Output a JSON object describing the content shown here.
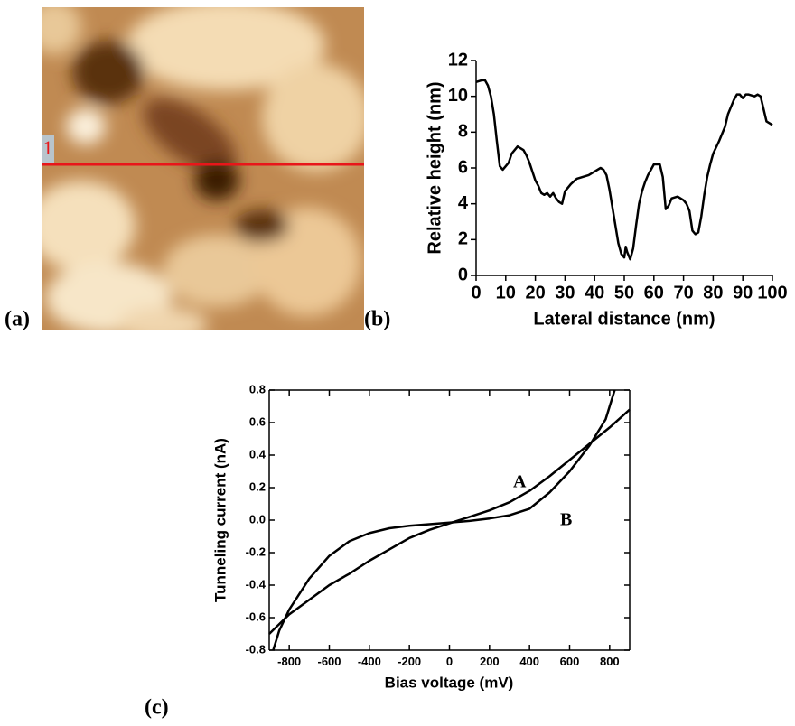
{
  "panels": [
    {
      "label": "(a)",
      "marker": "1"
    },
    {
      "label": "(b)"
    },
    {
      "label": "(c)"
    }
  ],
  "chart_data": [
    {
      "type": "line",
      "xlabel": "Lateral distance (nm)",
      "ylabel": "Relative height (nm)",
      "xlim": [
        0,
        100
      ],
      "ylim": [
        0,
        12
      ],
      "xticks": [
        0,
        10,
        20,
        30,
        40,
        50,
        60,
        70,
        80,
        90,
        100
      ],
      "yticks": [
        0,
        2,
        4,
        6,
        8,
        10,
        12
      ],
      "frame": false,
      "series": [
        {
          "color": "#000000",
          "x": [
            0,
            2,
            3,
            4,
            5,
            6,
            7,
            8,
            9,
            10,
            11,
            12,
            13,
            14,
            16,
            17,
            18,
            19,
            20,
            21,
            22,
            23,
            24,
            25,
            26,
            27,
            28,
            29,
            30,
            32,
            34,
            36,
            38,
            40,
            42,
            43,
            44,
            45,
            46,
            47,
            48,
            49,
            50,
            50.5,
            51,
            52,
            53,
            54,
            55,
            56,
            57,
            58,
            59,
            60,
            62,
            63,
            64,
            65,
            66,
            68,
            70,
            71,
            72,
            73,
            74,
            75,
            76,
            77,
            78,
            79,
            80,
            82,
            84,
            85,
            86,
            87,
            88,
            89,
            90,
            91,
            92,
            94,
            95,
            96,
            97,
            98,
            99,
            100
          ],
          "values": [
            10.8,
            10.9,
            10.9,
            10.6,
            10.0,
            9.0,
            7.5,
            6.1,
            5.9,
            6.1,
            6.3,
            6.8,
            7.0,
            7.2,
            7.0,
            6.7,
            6.3,
            5.8,
            5.3,
            5.0,
            4.6,
            4.5,
            4.6,
            4.4,
            4.6,
            4.3,
            4.1,
            4.0,
            4.7,
            5.1,
            5.4,
            5.5,
            5.6,
            5.8,
            6.0,
            5.9,
            5.6,
            4.8,
            3.8,
            2.8,
            1.8,
            1.2,
            1.0,
            1.6,
            1.3,
            0.9,
            1.5,
            2.8,
            4.0,
            4.7,
            5.2,
            5.6,
            5.9,
            6.2,
            6.2,
            5.5,
            3.7,
            3.9,
            4.3,
            4.4,
            4.2,
            4.0,
            3.6,
            2.5,
            2.3,
            2.4,
            3.3,
            4.5,
            5.5,
            6.2,
            6.8,
            7.5,
            8.3,
            9.0,
            9.4,
            9.8,
            10.1,
            10.1,
            9.9,
            10.1,
            10.1,
            10.0,
            10.1,
            10.0,
            9.3,
            8.6,
            8.5,
            8.4
          ]
        }
      ]
    },
    {
      "type": "line",
      "xlabel": "Bias voltage (mV)",
      "ylabel": "Tunneling current (nA)",
      "xlim": [
        -900,
        900
      ],
      "ylim": [
        -0.8,
        0.8
      ],
      "xticks": [
        -800,
        -600,
        -400,
        -200,
        0,
        200,
        400,
        600,
        800
      ],
      "yticks": [
        -0.8,
        -0.6,
        -0.4,
        -0.2,
        {
          "value": 0,
          "label": "0.0"
        },
        0.2,
        0.4,
        0.6,
        0.8
      ],
      "frame": true,
      "annotations": [
        "A",
        "B"
      ],
      "series": [
        {
          "color": "#000000",
          "x": [
            -900,
            -800,
            -700,
            -600,
            -500,
            -400,
            -300,
            -200,
            -100,
            0,
            100,
            200,
            300,
            400,
            500,
            600,
            700,
            800,
            900
          ],
          "values": [
            -0.7,
            -0.58,
            -0.49,
            -0.4,
            -0.33,
            -0.25,
            -0.18,
            -0.11,
            -0.06,
            -0.02,
            0.02,
            0.06,
            0.11,
            0.18,
            0.27,
            0.37,
            0.47,
            0.57,
            0.68
          ]
        },
        {
          "color": "#000000",
          "x": [
            -880,
            -850,
            -800,
            -700,
            -600,
            -500,
            -400,
            -300,
            -200,
            -100,
            0,
            100,
            200,
            300,
            400,
            500,
            600,
            700,
            780,
            825
          ],
          "values": [
            -0.8,
            -0.68,
            -0.55,
            -0.36,
            -0.22,
            -0.13,
            -0.08,
            -0.05,
            -0.035,
            -0.025,
            -0.015,
            -0.005,
            0.01,
            0.03,
            0.07,
            0.17,
            0.3,
            0.46,
            0.62,
            0.8
          ]
        }
      ]
    }
  ]
}
